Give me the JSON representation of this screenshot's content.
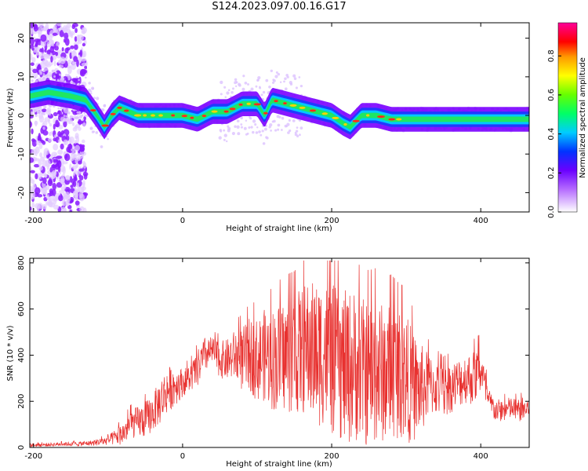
{
  "title": "S124.2023.097.00.16.G17",
  "colors": {
    "snr_line": "#e8312f",
    "spectrum_dense": "#7a00ff",
    "spectrum_light": "#d9b8ff",
    "axis": "#000000",
    "background": "#ffffff"
  },
  "chart_data": [
    {
      "type": "heatmap",
      "title": "",
      "xlabel": "Height of straight line (km)",
      "ylabel": "Frequency (Hz)",
      "xlim": [
        -205,
        465
      ],
      "ylim": [
        -25,
        24
      ],
      "xticks": [
        -200,
        0,
        200,
        400
      ],
      "xtick_labels": [
        "-200",
        "0",
        "200",
        "400"
      ],
      "yticks": [
        -20,
        -10,
        0,
        10,
        20
      ],
      "ytick_labels": [
        "-20",
        "-10",
        "0",
        "10",
        "20"
      ],
      "colorbar": {
        "label": "Normalized spectral amplitude",
        "range": [
          0.0,
          0.97
        ],
        "ticks": [
          0.0,
          0.2,
          0.4,
          0.6,
          0.8
        ],
        "tick_labels": [
          "0.0",
          "0.2",
          "0.4",
          "0.6",
          "0.8"
        ],
        "colormap": "rainbow (white-purple-blue-cyan-green-yellow-red-magenta)"
      },
      "ridge": {
        "x": [
          -205,
          -180,
          -150,
          -130,
          -115,
          -105,
          -95,
          -85,
          -60,
          -30,
          0,
          20,
          40,
          60,
          80,
          100,
          110,
          120,
          140,
          160,
          180,
          200,
          215,
          225,
          240,
          260,
          280,
          300,
          350,
          400,
          465
        ],
        "frequency": [
          5,
          6,
          5,
          4,
          0,
          -3,
          0,
          2,
          0,
          0,
          0,
          -1,
          1,
          1,
          3,
          3,
          0,
          4,
          3,
          2,
          1,
          0,
          -2,
          -3,
          0,
          0,
          -1,
          -1,
          -1,
          -1,
          -1
        ]
      }
    },
    {
      "type": "line",
      "title": "",
      "xlabel": "Height of straight line (km)",
      "ylabel": "SNR (10 * v/v)",
      "xlim": [
        -205,
        465
      ],
      "ylim": [
        0,
        820
      ],
      "xticks": [
        -200,
        0,
        200,
        400
      ],
      "xtick_labels": [
        "-200",
        "0",
        "200",
        "400"
      ],
      "yticks": [
        0,
        200,
        400,
        600,
        800
      ],
      "ytick_labels": [
        "0",
        "200",
        "400",
        "600",
        "800"
      ],
      "series": [
        {
          "name": "",
          "x": [
            -205,
            -180,
            -160,
            -140,
            -120,
            -100,
            -80,
            -70,
            -60,
            -50,
            -40,
            -30,
            -20,
            -10,
            0,
            10,
            20,
            30,
            40,
            50,
            60,
            70,
            80,
            90,
            100,
            110,
            120,
            130,
            140,
            150,
            160,
            170,
            180,
            190,
            200,
            210,
            220,
            230,
            240,
            250,
            260,
            270,
            280,
            290,
            300,
            310,
            320,
            330,
            340,
            350,
            360,
            370,
            380,
            390,
            400,
            410,
            420,
            430,
            440,
            450,
            465
          ],
          "mean": [
            10,
            12,
            15,
            15,
            20,
            30,
            60,
            100,
            110,
            120,
            150,
            200,
            250,
            270,
            280,
            300,
            340,
            400,
            420,
            380,
            380,
            400,
            380,
            400,
            380,
            400,
            380,
            390,
            400,
            400,
            420,
            430,
            400,
            420,
            380,
            360,
            340,
            360,
            330,
            320,
            330,
            320,
            330,
            320,
            300,
            260,
            250,
            270,
            260,
            240,
            260,
            280,
            300,
            300,
            340,
            200,
            160,
            160,
            170,
            160,
            170
          ],
          "amp": [
            8,
            8,
            8,
            10,
            12,
            20,
            50,
            60,
            70,
            80,
            80,
            100,
            100,
            90,
            60,
            60,
            80,
            80,
            60,
            80,
            90,
            110,
            140,
            160,
            180,
            200,
            220,
            240,
            250,
            260,
            280,
            300,
            320,
            320,
            330,
            330,
            340,
            330,
            320,
            320,
            320,
            300,
            300,
            280,
            280,
            240,
            200,
            140,
            120,
            110,
            110,
            110,
            110,
            120,
            110,
            60,
            50,
            50,
            50,
            50,
            60
          ],
          "peak_max": 810
        }
      ]
    }
  ]
}
